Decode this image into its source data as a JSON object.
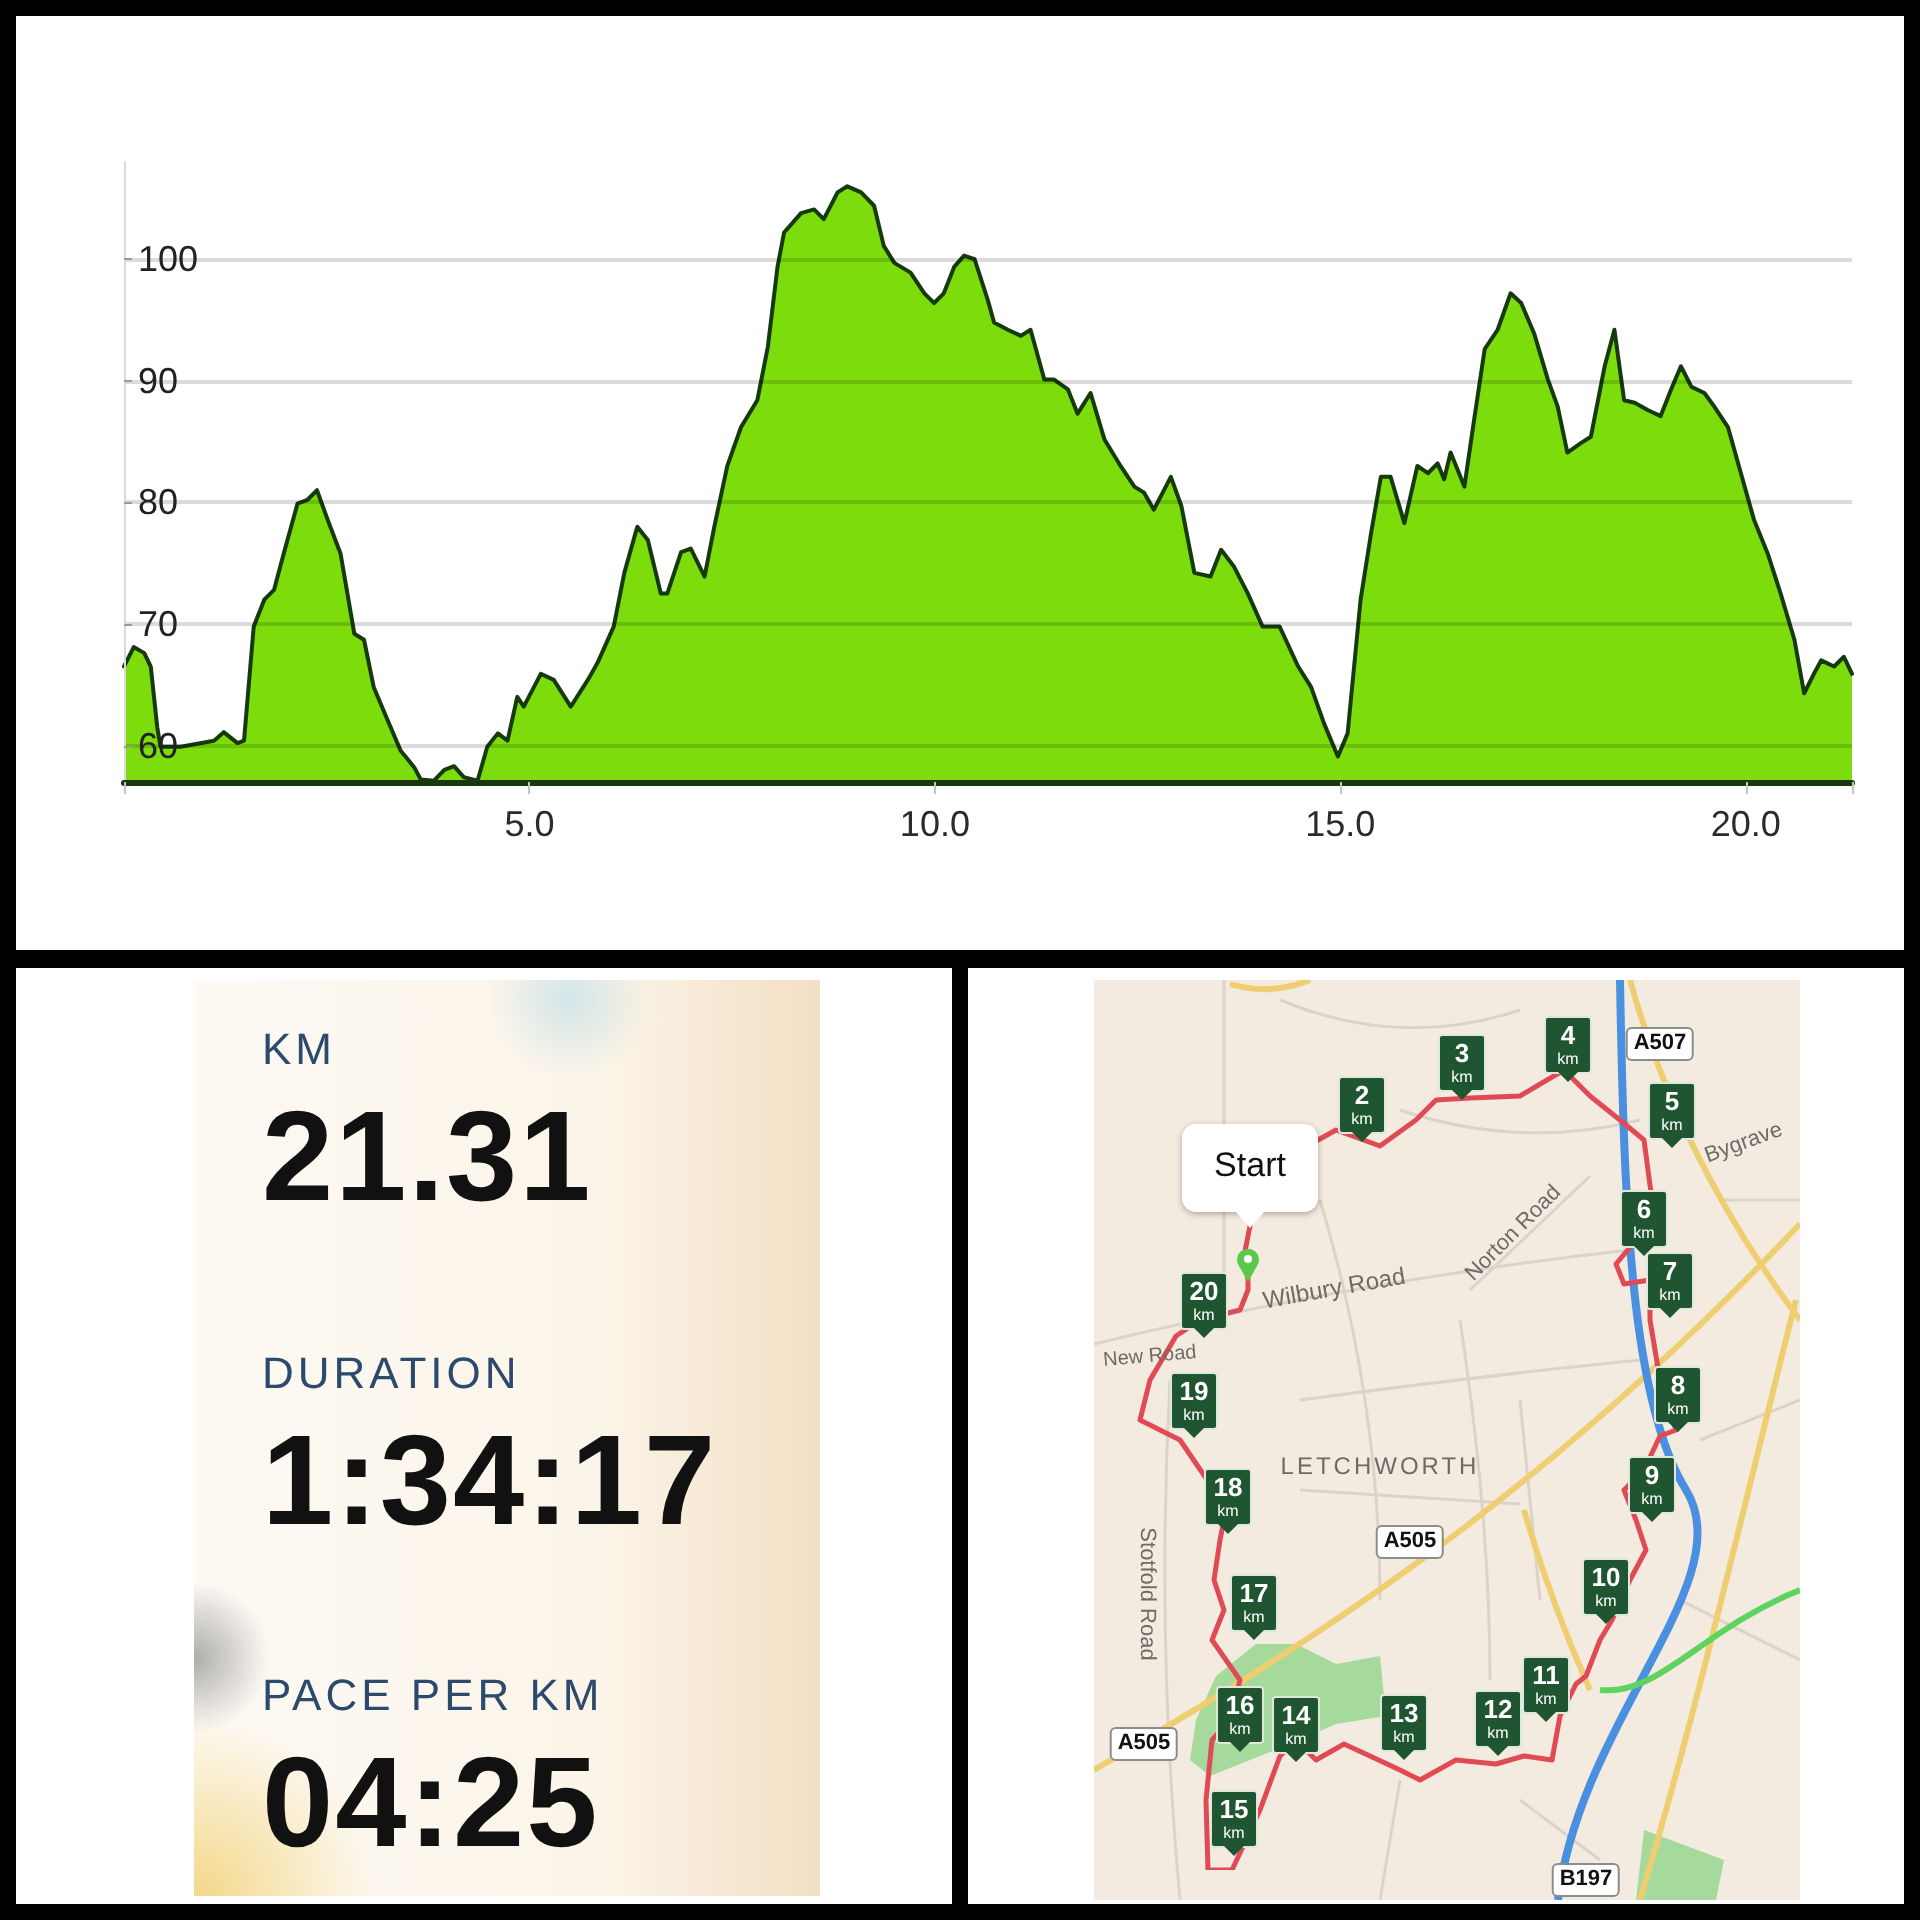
{
  "chart_data": [
    {
      "type": "area",
      "x": [
        0,
        0.12,
        0.25,
        0.33,
        0.41,
        0.45,
        0.7,
        1.11,
        1.23,
        1.4,
        1.48,
        1.6,
        1.73,
        1.85,
        1.97,
        2.14,
        2.26,
        2.38,
        2.51,
        2.67,
        2.84,
        2.96,
        3.08,
        3.25,
        3.41,
        3.58,
        3.66,
        3.82,
        3.95,
        4.07,
        4.19,
        4.36,
        4.48,
        4.61,
        4.73,
        4.85,
        4.93,
        5.14,
        5.3,
        5.51,
        5.72,
        5.84,
        6.04,
        6.17,
        6.33,
        6.46,
        6.62,
        6.7,
        6.87,
        6.99,
        7.16,
        7.28,
        7.44,
        7.61,
        7.81,
        7.94,
        8.06,
        8.14,
        8.35,
        8.51,
        8.63,
        8.8,
        8.92,
        9.09,
        9.25,
        9.37,
        9.5,
        9.7,
        9.87,
        9.99,
        10.11,
        10.24,
        10.36,
        10.49,
        10.65,
        10.73,
        10.9,
        11.06,
        11.18,
        11.35,
        11.47,
        11.64,
        11.76,
        11.92,
        12.09,
        12.29,
        12.46,
        12.58,
        12.7,
        12.91,
        13.04,
        13.2,
        13.4,
        13.53,
        13.69,
        13.86,
        14.04,
        14.25,
        14.48,
        14.64,
        14.8,
        14.97,
        15.09,
        15.25,
        15.38,
        15.5,
        15.62,
        15.79,
        15.95,
        16.08,
        16.2,
        16.28,
        16.36,
        16.53,
        16.65,
        16.78,
        16.94,
        17.1,
        17.23,
        17.39,
        17.56,
        17.68,
        17.8,
        17.97,
        18.09,
        18.26,
        18.38,
        18.5,
        18.63,
        18.79,
        18.95,
        19.08,
        19.2,
        19.33,
        19.49,
        19.61,
        19.78,
        19.94,
        20.1,
        20.27,
        20.43,
        20.6,
        20.72,
        20.84,
        20.93,
        21.09,
        21.21,
        21.31
      ],
      "values": [
        66.5,
        68.1,
        67.6,
        66.5,
        61.5,
        59.9,
        59.9,
        60.4,
        61.1,
        60.2,
        60.4,
        69.8,
        72.0,
        72.8,
        75.8,
        79.9,
        80.2,
        81.0,
        78.6,
        75.8,
        69.2,
        68.7,
        64.8,
        62.1,
        59.6,
        58.2,
        57.2,
        57.1,
        58.0,
        58.3,
        57.4,
        57.1,
        59.9,
        61.0,
        60.4,
        64.0,
        63.2,
        65.9,
        65.4,
        63.2,
        65.4,
        66.8,
        69.8,
        74.2,
        78.0,
        76.9,
        72.5,
        72.5,
        75.9,
        76.2,
        73.9,
        78.0,
        83.0,
        86.2,
        88.4,
        92.8,
        99.4,
        102.2,
        103.8,
        104.1,
        103.3,
        105.5,
        106.0,
        105.5,
        104.4,
        101.1,
        99.7,
        98.9,
        97.2,
        96.4,
        97.2,
        99.4,
        100.3,
        100.0,
        96.7,
        94.8,
        94.2,
        93.7,
        94.2,
        90.1,
        90.1,
        89.3,
        87.3,
        89.0,
        85.2,
        83.0,
        81.3,
        80.8,
        79.4,
        82.1,
        79.7,
        74.2,
        73.9,
        76.1,
        74.7,
        72.5,
        69.8,
        69.8,
        66.5,
        64.8,
        61.8,
        59.1,
        61.0,
        72.0,
        77.5,
        82.1,
        82.1,
        78.3,
        83.0,
        82.4,
        83.2,
        81.9,
        84.1,
        81.3,
        86.8,
        92.6,
        94.2,
        97.2,
        96.4,
        93.9,
        90.1,
        87.9,
        84.1,
        84.9,
        85.4,
        91.2,
        94.2,
        88.4,
        88.2,
        87.6,
        87.1,
        89.3,
        91.2,
        89.5,
        89.0,
        87.9,
        86.2,
        82.4,
        78.6,
        75.8,
        72.5,
        68.7,
        64.3,
        65.9,
        67.0,
        66.5,
        67.3,
        65.9
      ],
      "color": "#7ddc0c",
      "xlim": [
        0,
        21.31
      ],
      "xticks": [
        {
          "value": 0,
          "label": null
        },
        {
          "value": 5,
          "label": "5.0"
        },
        {
          "value": 10,
          "label": "10.0"
        },
        {
          "value": 15,
          "label": "15.0"
        },
        {
          "value": 20,
          "label": "20.0"
        },
        {
          "value": 21.31,
          "label": null
        }
      ],
      "ylim": [
        57,
        108
      ],
      "yticks": [
        60,
        70,
        80,
        90,
        100
      ],
      "grid": "y"
    },
    {
      "type": "other",
      "annotations": [
        "KM",
        "21.31",
        "DURATION",
        "1:34:17",
        "PACE PER KM",
        "04:25"
      ]
    },
    {
      "type": "other",
      "annotations": [
        "Start",
        "Wilbury Road",
        "New Road",
        "Norton Road",
        "LETCHWORTH",
        "Stotfold Road",
        "Bygrave",
        "A507",
        "A505",
        "A505",
        "B197",
        "2 km",
        "3 km",
        "4 km",
        "5 km",
        "6 km",
        "7 km",
        "8 km",
        "9 km",
        "10 km",
        "11 km",
        "12 km",
        "13 km",
        "14 km",
        "15 km",
        "16 km",
        "17 km",
        "18 km",
        "19 km",
        "20 km"
      ]
    }
  ]
}
